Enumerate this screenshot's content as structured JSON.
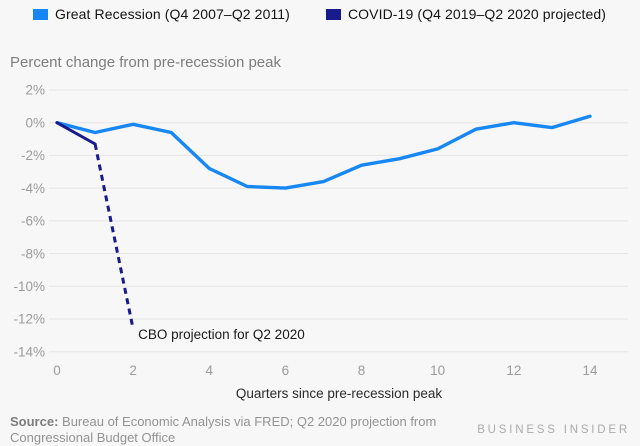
{
  "legend": {
    "items": [
      {
        "label": "Great Recession (Q4 2007–Q2 2011)",
        "color": "#1787f3"
      },
      {
        "label": "COVID-19 (Q4 2019–Q2 2020 projected)",
        "color": "#191a8c"
      }
    ]
  },
  "subtitle": "Percent change from pre-recession peak",
  "chart_data": {
    "type": "line",
    "title": "",
    "ylabel": "Percent change from pre-recession peak",
    "xlabel": "Quarters since pre-recession peak",
    "ylim": [
      -14,
      2
    ],
    "xlim": [
      0,
      14
    ],
    "grid": true,
    "legend_position": "top",
    "x": [
      0,
      1,
      2,
      3,
      4,
      5,
      6,
      7,
      8,
      9,
      10,
      11,
      12,
      13,
      14
    ],
    "series": [
      {
        "name": "Great Recession (Q4 2007–Q2 2011)",
        "color": "#1787f3",
        "style": "solid",
        "values": [
          0,
          -0.6,
          -0.1,
          -0.6,
          -2.8,
          -3.9,
          -4.0,
          -3.6,
          -2.6,
          -2.2,
          -1.6,
          -0.4,
          0.0,
          -0.3,
          0.4
        ]
      },
      {
        "name": "COVID-19 (Q4 2019–Q2 2020 projected)",
        "color": "#191a8c",
        "style": "solid-then-dashed",
        "dash_start_index": 1,
        "x": [
          0,
          1,
          2
        ],
        "values": [
          0,
          -1.3,
          -12.6
        ]
      }
    ],
    "y_ticks": [
      {
        "label": "2%",
        "value": 2
      },
      {
        "label": "0%",
        "value": 0
      },
      {
        "label": "-2%",
        "value": -2
      },
      {
        "label": "-4%",
        "value": -4
      },
      {
        "label": "-6%",
        "value": -6
      },
      {
        "label": "-8%",
        "value": -8
      },
      {
        "label": "-10%",
        "value": -10
      },
      {
        "label": "-12%",
        "value": -12
      },
      {
        "label": "-14%",
        "value": -14
      }
    ],
    "x_ticks": [
      {
        "label": "0",
        "value": 0
      },
      {
        "label": "2",
        "value": 2
      },
      {
        "label": "4",
        "value": 4
      },
      {
        "label": "6",
        "value": 6
      },
      {
        "label": "8",
        "value": 8
      },
      {
        "label": "10",
        "value": 10
      },
      {
        "label": "12",
        "value": 12
      },
      {
        "label": "14",
        "value": 14
      }
    ],
    "annotation": {
      "text": "CBO projection for Q2 2020",
      "quarter": 2,
      "value": -12.6
    }
  },
  "axis": {
    "x_title": "Quarters since pre-recession peak"
  },
  "footer": {
    "source_prefix": "Source:",
    "source_text": "Bureau of Economic Analysis via FRED; Q2 2020 projection from Congressional Budget Office",
    "brand": "BUSINESS INSIDER"
  },
  "colors": {
    "background": "#f7f7f8",
    "gridline": "#e5e5e5",
    "tick_label": "#9b9b9b",
    "great_recession_blue": "#1787f3",
    "covid_navy": "#191a8c"
  }
}
